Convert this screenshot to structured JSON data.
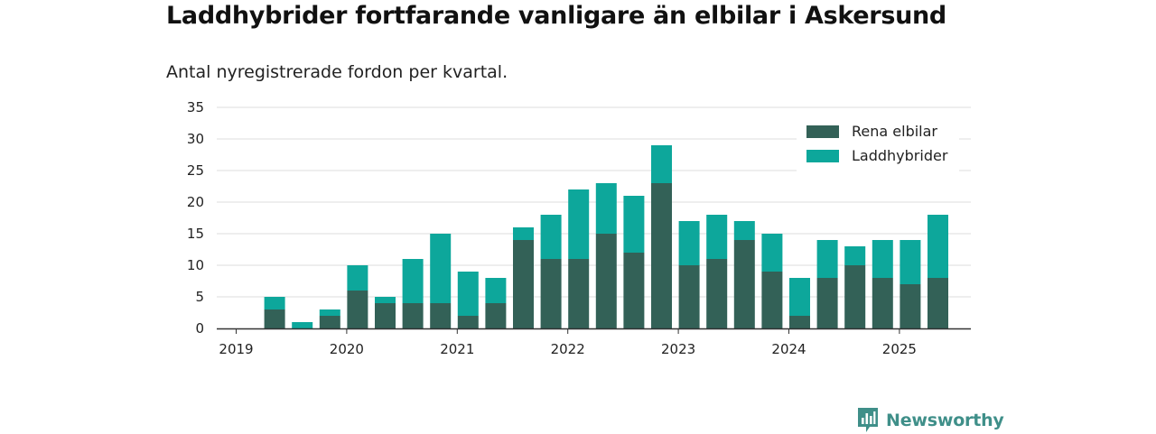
{
  "title": "Laddhybrider fortfarande vanligare än elbilar i Askersund",
  "subtitle": "Antal nyregistrerade fordon per kvartal.",
  "brand": "Newsworthy",
  "chart_data": {
    "type": "bar",
    "stacked": true,
    "x_axis_type": "date",
    "categories": [
      "2019-Q1",
      "2019-Q2",
      "2019-Q3",
      "2019-Q4",
      "2020-Q1",
      "2020-Q2",
      "2020-Q3",
      "2020-Q4",
      "2021-Q1",
      "2021-Q2",
      "2021-Q3",
      "2021-Q4",
      "2022-Q1",
      "2022-Q2",
      "2022-Q3",
      "2022-Q4",
      "2023-Q1",
      "2023-Q2",
      "2023-Q3",
      "2023-Q4",
      "2024-Q1",
      "2024-Q2",
      "2024-Q3",
      "2024-Q4",
      "2025-Q1",
      "2025-Q2"
    ],
    "series": [
      {
        "name": "Rena elbilar",
        "color": "#336157",
        "values": [
          0,
          3,
          0,
          2,
          6,
          4,
          4,
          4,
          2,
          4,
          14,
          11,
          11,
          15,
          12,
          23,
          10,
          11,
          14,
          9,
          2,
          8,
          10,
          8,
          7,
          8
        ]
      },
      {
        "name": "Laddhybrider",
        "color": "#0da79b",
        "values": [
          0,
          2,
          1,
          1,
          4,
          1,
          7,
          11,
          7,
          4,
          2,
          7,
          11,
          8,
          9,
          6,
          7,
          7,
          3,
          6,
          6,
          6,
          3,
          6,
          7,
          10
        ]
      }
    ],
    "y_ticks": [
      0,
      5,
      10,
      15,
      20,
      25,
      30,
      35
    ],
    "ylim": [
      0,
      35
    ],
    "x_ticks": [
      "2019",
      "2020",
      "2021",
      "2022",
      "2023",
      "2024",
      "2025"
    ],
    "legend_position": "top-right",
    "grid": "horizontal",
    "xlabel": "",
    "ylabel": ""
  }
}
